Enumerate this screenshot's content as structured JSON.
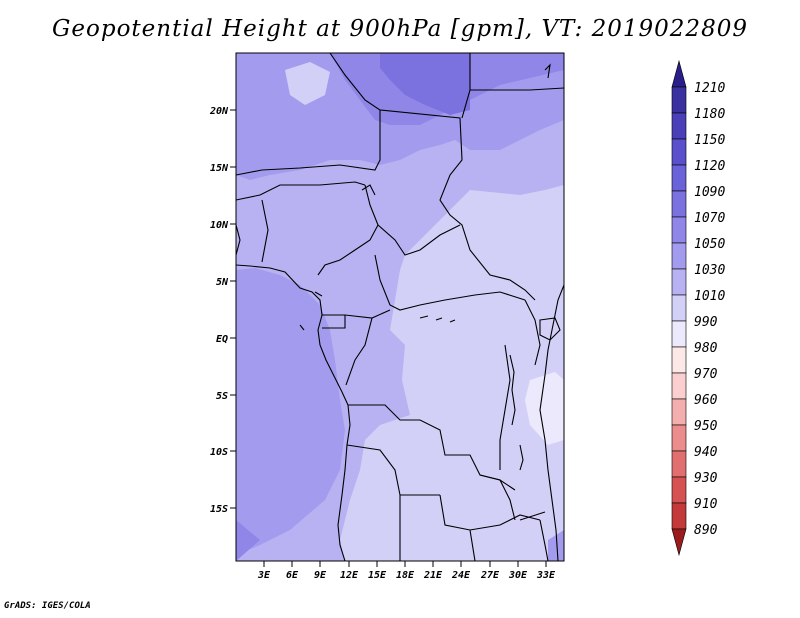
{
  "title": "Geopotential Height at 900hPa [gpm], VT: 2019022809",
  "footer": "GrADS: IGES/COLA",
  "map": {
    "variable": "Geopotential Height",
    "level": "900hPa",
    "units": "gpm",
    "valid_time": "2019022809",
    "lat_ticks": [
      "20N",
      "15N",
      "10N",
      "5N",
      "EQ",
      "5S",
      "10S",
      "15S"
    ],
    "lon_ticks": [
      "3E",
      "6E",
      "9E",
      "12E",
      "15E",
      "18E",
      "21E",
      "24E",
      "27E",
      "30E",
      "33E"
    ]
  },
  "colorbar": {
    "levels": [
      "1210",
      "1180",
      "1150",
      "1120",
      "1090",
      "1070",
      "1050",
      "1030",
      "1010",
      "990",
      "980",
      "970",
      "960",
      "950",
      "940",
      "930",
      "910",
      "890"
    ],
    "colors": [
      "#3b30a0",
      "#4a3fb8",
      "#5a50cc",
      "#6a62d8",
      "#7b72e0",
      "#8f86e8",
      "#a39cee",
      "#b8b2f2",
      "#d3d0f8",
      "#ece9fc",
      "#fde8e8",
      "#fbcfcf",
      "#f4aeae",
      "#ec8d8d",
      "#e16f6f",
      "#d65252",
      "#c43a3a",
      "#ae2626"
    ],
    "top_color": "#2a1f8a",
    "bottom_color": "#9a1c1c"
  }
}
